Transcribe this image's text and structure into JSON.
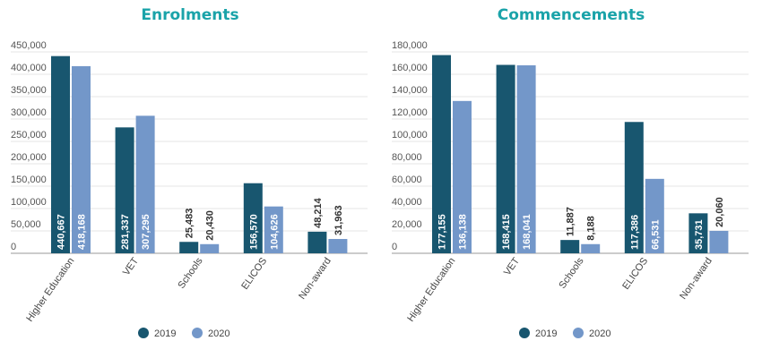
{
  "colors": {
    "s2019": "#18566f",
    "s2020": "#7397c9",
    "title": "#1aa3a9",
    "grid": "#e4e4e4",
    "axis": "#999999"
  },
  "chart_data": [
    {
      "type": "bar",
      "title": "Enrolments",
      "categories": [
        "Higher Education",
        "VET",
        "Schools",
        "ELICOS",
        "Non-award"
      ],
      "series": [
        {
          "name": "2019",
          "values": [
            440667,
            281337,
            25483,
            156570,
            48214
          ]
        },
        {
          "name": "2020",
          "values": [
            418168,
            307295,
            20430,
            104626,
            31963
          ]
        }
      ],
      "value_labels": [
        [
          "440,667",
          "281,337",
          "25,483",
          "156,570",
          "48,214"
        ],
        [
          "418,168",
          "307,295",
          "20,430",
          "104,626",
          "31,963"
        ]
      ],
      "label_inside": [
        [
          true,
          true,
          false,
          true,
          false
        ],
        [
          true,
          true,
          false,
          true,
          false
        ]
      ],
      "yticks": [
        "0",
        "50,000",
        "100,000",
        "150,000",
        "200,000",
        "250,000",
        "300,000",
        "350,000",
        "400,000",
        "450,000"
      ],
      "ylim": [
        0,
        450000
      ],
      "grid": true,
      "legend": "bottom-center"
    },
    {
      "type": "bar",
      "title": "Commencements",
      "categories": [
        "Higher Education",
        "VET",
        "Schools",
        "ELICOS",
        "Non-award"
      ],
      "series": [
        {
          "name": "2019",
          "values": [
            177155,
            168415,
            11887,
            117386,
            35731
          ]
        },
        {
          "name": "2020",
          "values": [
            136138,
            168041,
            8188,
            66531,
            20060
          ]
        }
      ],
      "value_labels": [
        [
          "177,155",
          "168,415",
          "11,887",
          "117,386",
          "35,731"
        ],
        [
          "136,138",
          "168,041",
          "8,188",
          "66,531",
          "20,060"
        ]
      ],
      "label_inside": [
        [
          true,
          true,
          false,
          true,
          true
        ],
        [
          true,
          true,
          false,
          true,
          false
        ]
      ],
      "yticks": [
        "0",
        "20,000",
        "40,000",
        "60,000",
        "80,000",
        "100,000",
        "120,000",
        "140,000",
        "160,000",
        "180,000"
      ],
      "ylim": [
        0,
        180000
      ],
      "grid": true,
      "legend": "bottom-center"
    }
  ]
}
